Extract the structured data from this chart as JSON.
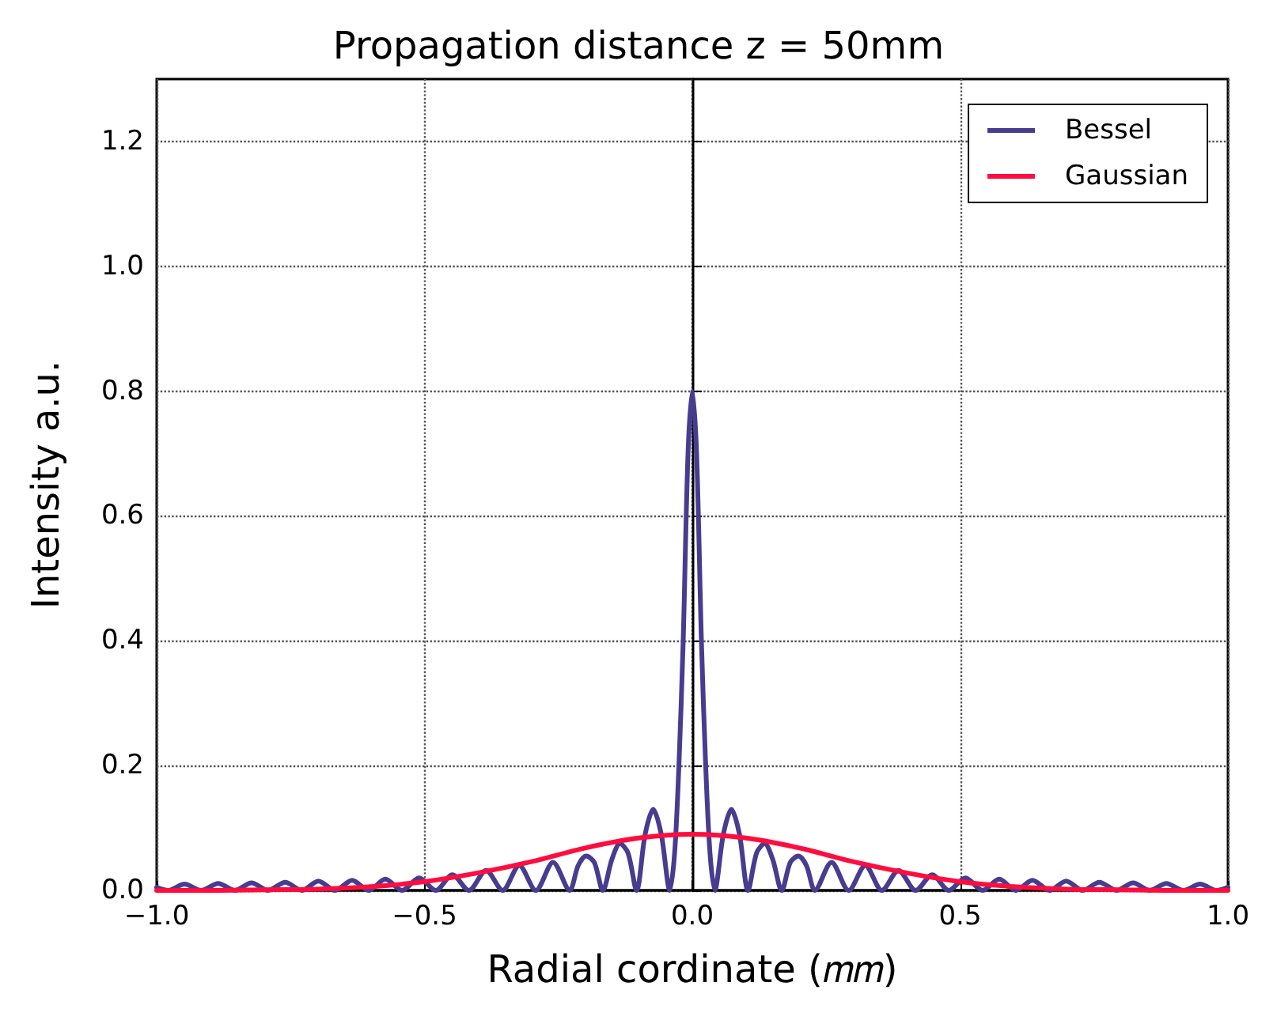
{
  "chart_data": {
    "type": "line",
    "title": "Propagation distance z = 50mm",
    "xlabel": "Radial cordinate (𝑚𝑚)",
    "ylabel": "Intensity a.u.",
    "xlim": [
      -1,
      1
    ],
    "xticks": [
      {
        "value": -1,
        "label": "−1.0"
      },
      {
        "value": -0.5,
        "label": "−0.5"
      },
      {
        "value": 0,
        "label": "0.0"
      },
      {
        "value": 0.5,
        "label": "0.5"
      },
      {
        "value": 1,
        "label": "1.0"
      }
    ],
    "ylim": [
      0,
      1.3
    ],
    "yticks": [
      {
        "value": 0,
        "label": "0.0"
      },
      {
        "value": 0.2,
        "label": "0.2"
      },
      {
        "value": 0.4,
        "label": "0.4"
      },
      {
        "value": 0.6,
        "label": "0.6"
      },
      {
        "value": 0.8,
        "label": "0.8"
      },
      {
        "value": 1,
        "label": "1.0"
      },
      {
        "value": 1.2,
        "label": "1.2"
      }
    ],
    "grid": true,
    "legend": "top right",
    "line_style": "solid",
    "marker": "none",
    "series": [
      {
        "name": "Bessel",
        "color": "#483c8f",
        "x": [
          -1.0,
          -0.979,
          -0.948,
          -0.917,
          -0.885,
          -0.854,
          -0.823,
          -0.792,
          -0.76,
          -0.729,
          -0.698,
          -0.667,
          -0.635,
          -0.604,
          -0.573,
          -0.542,
          -0.51,
          -0.479,
          -0.448,
          -0.417,
          -0.385,
          -0.354,
          -0.323,
          -0.292,
          -0.26,
          -0.229,
          -0.213,
          -0.198,
          -0.183,
          -0.167,
          -0.15,
          -0.135,
          -0.12,
          -0.104,
          -0.088,
          -0.073,
          -0.058,
          -0.042,
          -0.033,
          -0.025,
          -0.017,
          -0.008,
          0,
          0.008,
          0.017,
          0.025,
          0.033,
          0.042,
          0.058,
          0.073,
          0.088,
          0.104,
          0.12,
          0.135,
          0.15,
          0.167,
          0.183,
          0.198,
          0.213,
          0.229,
          0.26,
          0.292,
          0.323,
          0.354,
          0.385,
          0.417,
          0.448,
          0.479,
          0.51,
          0.542,
          0.573,
          0.604,
          0.635,
          0.667,
          0.698,
          0.729,
          0.76,
          0.792,
          0.823,
          0.854,
          0.885,
          0.917,
          0.948,
          0.979,
          1.0
        ],
        "values": [
          0.005,
          0,
          0.01,
          0,
          0.011,
          0,
          0.012,
          0,
          0.013,
          0,
          0.015,
          0,
          0.016,
          0,
          0.018,
          0,
          0.02,
          0,
          0.025,
          0,
          0.032,
          0,
          0.04,
          0,
          0.045,
          0,
          0.04,
          0.055,
          0.045,
          0,
          0.05,
          0.075,
          0.06,
          0,
          0.09,
          0.13,
          0.09,
          0,
          0.06,
          0.2,
          0.4,
          0.7,
          0.8,
          0.7,
          0.4,
          0.2,
          0.06,
          0,
          0.09,
          0.13,
          0.09,
          0,
          0.06,
          0.075,
          0.05,
          0,
          0.045,
          0.055,
          0.04,
          0,
          0.045,
          0,
          0.04,
          0,
          0.032,
          0,
          0.025,
          0,
          0.02,
          0,
          0.018,
          0,
          0.016,
          0,
          0.015,
          0,
          0.013,
          0,
          0.012,
          0,
          0.011,
          0,
          0.01,
          0,
          0.005
        ]
      },
      {
        "name": "Gaussian",
        "color": "#ff0d3f",
        "x": [
          -1,
          -0.9,
          -0.8,
          -0.7,
          -0.6,
          -0.5,
          -0.4,
          -0.3,
          -0.2,
          -0.1,
          0,
          0.1,
          0.2,
          0.3,
          0.4,
          0.5,
          0.6,
          0.7,
          0.8,
          0.9,
          1
        ],
        "values": [
          0,
          0,
          0.001,
          0.002,
          0.006,
          0.014,
          0.028,
          0.046,
          0.068,
          0.084,
          0.09,
          0.084,
          0.068,
          0.046,
          0.028,
          0.014,
          0.006,
          0.002,
          0.001,
          0,
          0
        ]
      }
    ]
  }
}
